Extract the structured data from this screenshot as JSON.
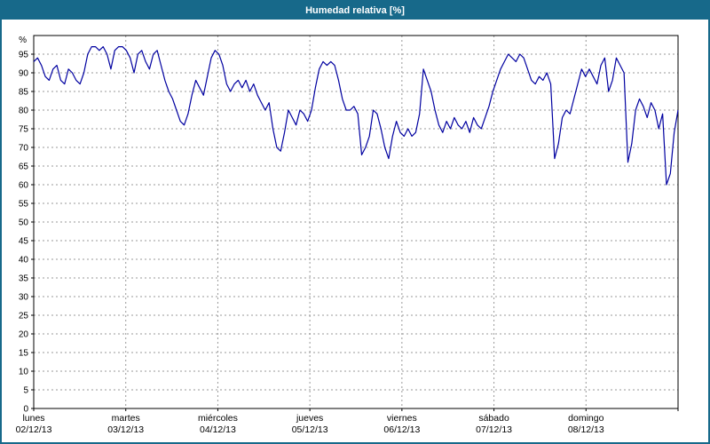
{
  "window": {
    "title": "Humedad relativa [%]"
  },
  "colors": {
    "titlebar_bg": "#17698a",
    "border": "#17698a",
    "line": "#0000a0",
    "grid": "#999999",
    "axis": "#000000",
    "background": "#ffffff",
    "text": "#000000"
  },
  "chart_data": {
    "type": "line",
    "title": "Humedad relativa [%]",
    "ylabel": "%",
    "xlabel": "",
    "ylim": [
      0,
      100
    ],
    "ytick_step": 5,
    "yticks": [
      0,
      5,
      10,
      15,
      20,
      25,
      30,
      35,
      40,
      45,
      50,
      55,
      60,
      65,
      70,
      75,
      80,
      85,
      90,
      95
    ],
    "grid": true,
    "legend_position": "none",
    "x_axis": {
      "points_per_day": 24,
      "days": [
        {
          "name": "lunes",
          "date": "02/12/13"
        },
        {
          "name": "martes",
          "date": "03/12/13"
        },
        {
          "name": "miércoles",
          "date": "04/12/13"
        },
        {
          "name": "jueves",
          "date": "05/12/13"
        },
        {
          "name": "viernes",
          "date": "06/12/13"
        },
        {
          "name": "sábado",
          "date": "07/12/13"
        },
        {
          "name": "domingo",
          "date": "08/12/13"
        }
      ]
    },
    "series": [
      {
        "name": "Humedad relativa [%]",
        "color": "#0000a0",
        "values": [
          93,
          94,
          92,
          89,
          88,
          91,
          92,
          88,
          87,
          91,
          90,
          88,
          87,
          90,
          95,
          97,
          97,
          96,
          97,
          95,
          91,
          96,
          97,
          97,
          96,
          94,
          90,
          95,
          96,
          93,
          91,
          95,
          96,
          92,
          88,
          85,
          83,
          80,
          77,
          76,
          79,
          84,
          88,
          86,
          84,
          89,
          94,
          96,
          95,
          92,
          87,
          85,
          87,
          88,
          86,
          88,
          85,
          87,
          84,
          82,
          80,
          82,
          75,
          70,
          69,
          74,
          80,
          78,
          76,
          80,
          79,
          77,
          80,
          86,
          91,
          93,
          92,
          93,
          92,
          88,
          83,
          80,
          80,
          81,
          79,
          68,
          70,
          73,
          80,
          79,
          75,
          70,
          67,
          73,
          77,
          74,
          73,
          75,
          73,
          74,
          79,
          91,
          88,
          85,
          80,
          76,
          74,
          77,
          75,
          78,
          76,
          75,
          77,
          74,
          78,
          76,
          75,
          78,
          81,
          85,
          88,
          91,
          93,
          95,
          94,
          93,
          95,
          94,
          91,
          88,
          87,
          89,
          88,
          90,
          87,
          67,
          71,
          78,
          80,
          79,
          83,
          87,
          91,
          89,
          91,
          89,
          87,
          92,
          94,
          85,
          88,
          94,
          92,
          90,
          66,
          71,
          80,
          83,
          81,
          78,
          82,
          80,
          75,
          79,
          60,
          63,
          74,
          80
        ]
      }
    ]
  }
}
